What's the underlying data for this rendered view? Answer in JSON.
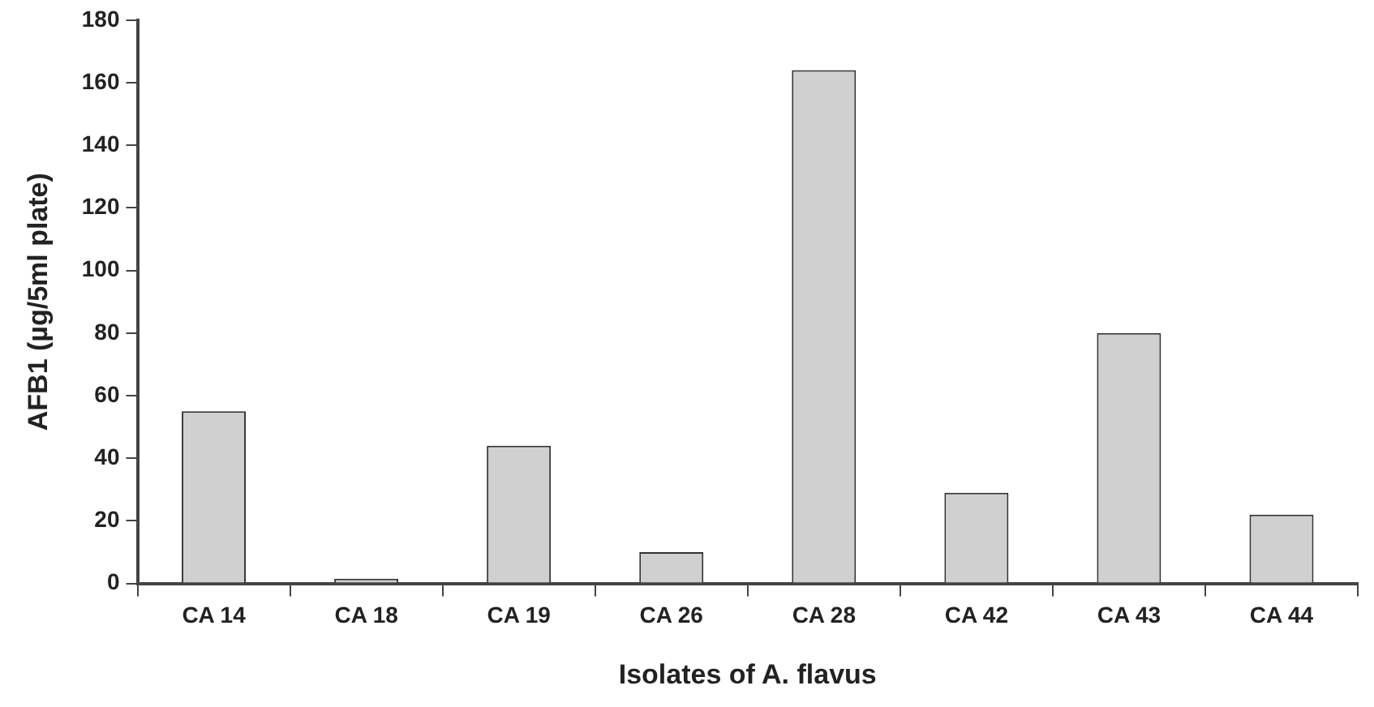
{
  "chart_data": {
    "type": "bar",
    "xlabel": "Isolates of A. flavus",
    "ylabel": "AFB1 (µg/5ml plate)",
    "categories": [
      "CA 14",
      "CA 18",
      "CA 19",
      "CA 26",
      "CA 28",
      "CA 42",
      "CA 43",
      "CA 44"
    ],
    "values": [
      55,
      1.5,
      44,
      10,
      164,
      29,
      80,
      22
    ],
    "color": "#d0d0d0",
    "ylim": [
      0,
      180
    ],
    "yticks": [
      0,
      20,
      40,
      60,
      80,
      100,
      120,
      140,
      160,
      180
    ],
    "grid": false,
    "legend": false
  }
}
